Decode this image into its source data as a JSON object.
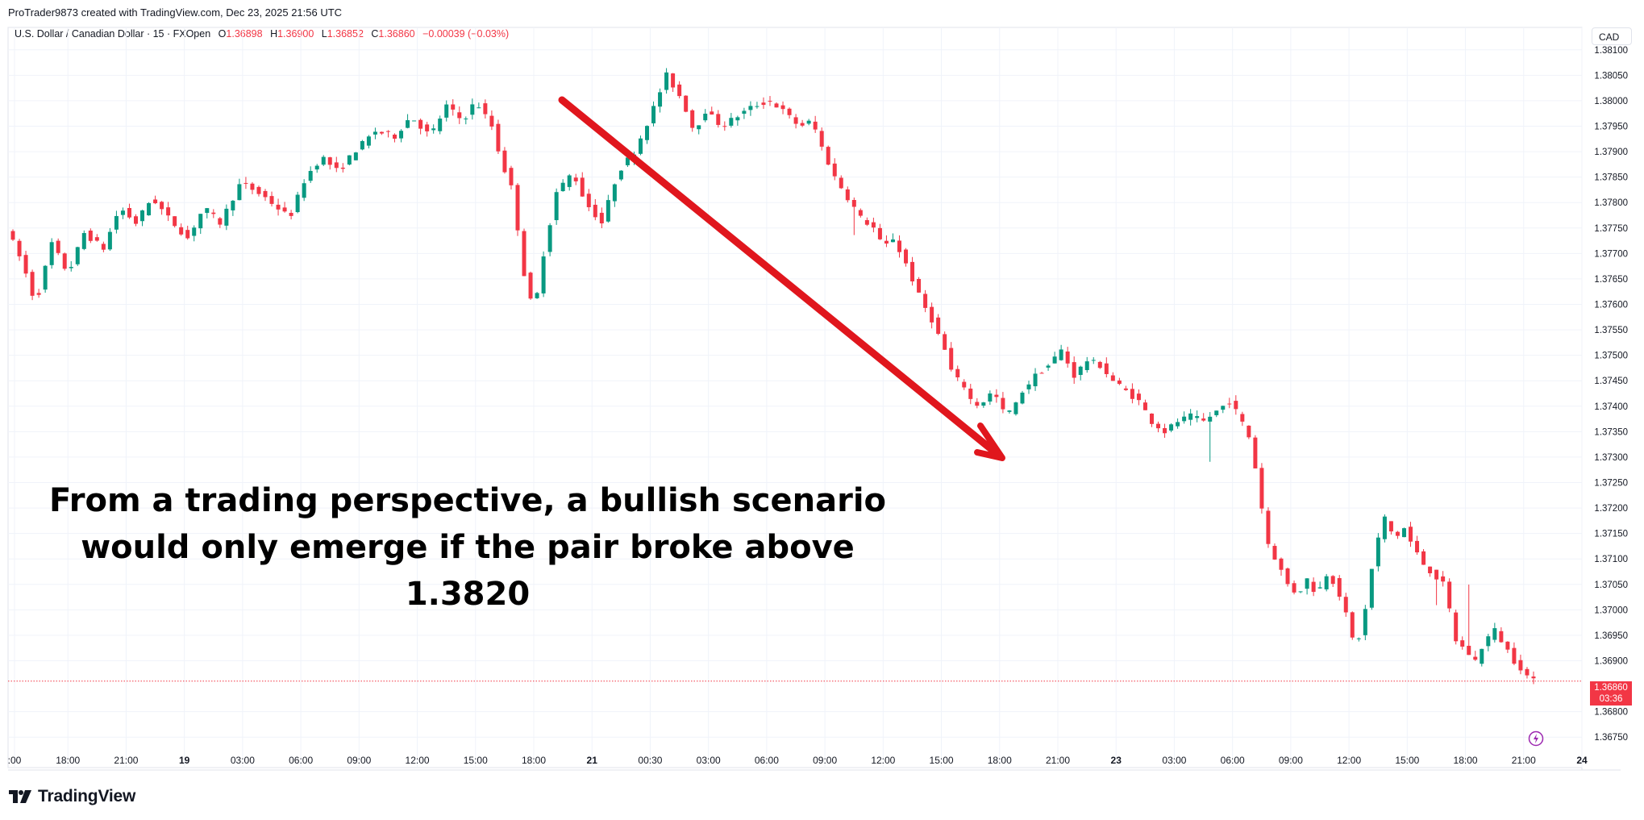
{
  "header": {
    "credit": "ProTrader9873 created with TradingView.com, Dec 23, 2025 21:56 UTC"
  },
  "legend": {
    "symbol": "U.S. Dollar / Canadian Dollar · 15 · FXOpen",
    "o_label": "O",
    "open": "1.36898",
    "h_label": "H",
    "high": "1.36900",
    "l_label": "L",
    "low": "1.36852",
    "c_label": "C",
    "close": "1.36860",
    "change": "−0.00039 (−0.03%)"
  },
  "currency": "CAD",
  "annotation": {
    "line1": "From a trading perspective, a bullish scenario",
    "line2": "would only emerge if the pair broke above 1.3820"
  },
  "price_tag": {
    "price": "1.36860",
    "countdown": "03:36"
  },
  "brand": {
    "name": "TradingView"
  },
  "colors": {
    "up": "#089981",
    "down": "#f23645",
    "arrow": "#e0161d",
    "grid": "#f0f3fa"
  },
  "chart_data": {
    "type": "candlestick",
    "ylabel": "",
    "xlabel": "",
    "ylim": [
      1.36725,
      1.38125
    ],
    "y_ticks": [
      "1.38100",
      "1.38050",
      "1.38000",
      "1.37950",
      "1.37900",
      "1.37850",
      "1.37800",
      "1.37750",
      "1.37700",
      "1.37650",
      "1.37600",
      "1.37550",
      "1.37500",
      "1.37450",
      "1.37400",
      "1.37350",
      "1.37300",
      "1.37250",
      "1.37200",
      "1.37150",
      "1.37100",
      "1.37050",
      "1.37000",
      "1.36950",
      "1.36900",
      "1.36800",
      "1.36750"
    ],
    "x_ticks": [
      ":00",
      "18:00",
      "21:00",
      "19",
      "03:00",
      "06:00",
      "09:00",
      "12:00",
      "15:00",
      "18:00",
      "21",
      "00:30",
      "03:00",
      "06:00",
      "09:00",
      "12:00",
      "15:00",
      "18:00",
      "21:00",
      "23",
      "03:00",
      "06:00",
      "09:00",
      "12:00",
      "15:00",
      "18:00",
      "21:00",
      "24"
    ],
    "last_price": 1.3686,
    "trend_arrow": {
      "from": {
        "x": "Dec 21 ~00:00",
        "y": 1.3806
      },
      "to": {
        "x": "Dec 22 ~18:00",
        "y": 1.3731
      }
    },
    "path": [
      [
        0,
        1.3775
      ],
      [
        10,
        1.3768
      ],
      [
        18,
        1.376
      ],
      [
        28,
        1.3772
      ],
      [
        38,
        1.3766
      ],
      [
        48,
        1.3774
      ],
      [
        60,
        1.3771
      ],
      [
        70,
        1.3779
      ],
      [
        80,
        1.3776
      ],
      [
        90,
        1.3781
      ],
      [
        100,
        1.3777
      ],
      [
        112,
        1.3773
      ],
      [
        122,
        1.3779
      ],
      [
        132,
        1.3776
      ],
      [
        145,
        1.3784
      ],
      [
        160,
        1.3781
      ],
      [
        175,
        1.3777
      ],
      [
        185,
        1.3785
      ],
      [
        195,
        1.3789
      ],
      [
        205,
        1.3786
      ],
      [
        215,
        1.379
      ],
      [
        228,
        1.3794
      ],
      [
        240,
        1.3793
      ],
      [
        250,
        1.3797
      ],
      [
        262,
        1.3793
      ],
      [
        272,
        1.3799
      ],
      [
        282,
        1.3796
      ],
      [
        290,
        1.38
      ],
      [
        300,
        1.3795
      ],
      [
        306,
        1.3788
      ],
      [
        312,
        1.3783
      ],
      [
        316,
        1.3775
      ],
      [
        320,
        1.3766
      ],
      [
        326,
        1.3758
      ],
      [
        332,
        1.377
      ],
      [
        340,
        1.3782
      ],
      [
        350,
        1.3786
      ],
      [
        358,
        1.378
      ],
      [
        368,
        1.3776
      ],
      [
        378,
        1.3786
      ],
      [
        388,
        1.379
      ],
      [
        398,
        1.3797
      ],
      [
        408,
        1.3805
      ],
      [
        418,
        1.38
      ],
      [
        425,
        1.3794
      ],
      [
        432,
        1.3798
      ],
      [
        442,
        1.3795
      ],
      [
        452,
        1.3797
      ],
      [
        462,
        1.3799
      ],
      [
        472,
        1.38
      ],
      [
        480,
        1.3798
      ],
      [
        490,
        1.3795
      ],
      [
        498,
        1.3796
      ],
      [
        505,
        1.379
      ],
      [
        512,
        1.3785
      ],
      [
        520,
        1.3781
      ],
      [
        528,
        1.3777
      ],
      [
        536,
        1.3775
      ],
      [
        542,
        1.3771
      ],
      [
        548,
        1.3773
      ],
      [
        556,
        1.3768
      ],
      [
        565,
        1.3761
      ],
      [
        572,
        1.3757
      ],
      [
        580,
        1.3751
      ],
      [
        585,
        1.3746
      ],
      [
        592,
        1.3744
      ],
      [
        598,
        1.374
      ],
      [
        604,
        1.3741
      ],
      [
        610,
        1.3743
      ],
      [
        616,
        1.3739
      ],
      [
        622,
        1.3739
      ],
      [
        628,
        1.3743
      ],
      [
        636,
        1.3746
      ],
      [
        644,
        1.3748
      ],
      [
        652,
        1.3751
      ],
      [
        660,
        1.3746
      ],
      [
        668,
        1.3749
      ],
      [
        676,
        1.3748
      ],
      [
        684,
        1.3745
      ],
      [
        692,
        1.3743
      ],
      [
        700,
        1.3741
      ],
      [
        708,
        1.3737
      ],
      [
        716,
        1.3735
      ],
      [
        724,
        1.3737
      ],
      [
        732,
        1.3738
      ],
      [
        740,
        1.3737
      ],
      [
        748,
        1.3739
      ],
      [
        756,
        1.3741
      ],
      [
        762,
        1.3738
      ],
      [
        768,
        1.3734
      ],
      [
        772,
        1.3728
      ],
      [
        776,
        1.372
      ],
      [
        780,
        1.3713
      ],
      [
        786,
        1.3709
      ],
      [
        792,
        1.3705
      ],
      [
        798,
        1.3703
      ],
      [
        804,
        1.3706
      ],
      [
        810,
        1.3703
      ],
      [
        816,
        1.3707
      ],
      [
        822,
        1.3705
      ],
      [
        828,
        1.3699
      ],
      [
        834,
        1.3692
      ],
      [
        840,
        1.37
      ],
      [
        846,
        1.3712
      ],
      [
        852,
        1.3718
      ],
      [
        858,
        1.3714
      ],
      [
        864,
        1.3716
      ],
      [
        870,
        1.3712
      ],
      [
        876,
        1.3709
      ],
      [
        882,
        1.3707
      ],
      [
        888,
        1.3705
      ],
      [
        892,
        1.37
      ],
      [
        896,
        1.3694
      ],
      [
        902,
        1.3692
      ],
      [
        908,
        1.369
      ],
      [
        914,
        1.3694
      ],
      [
        920,
        1.3696
      ],
      [
        926,
        1.3693
      ],
      [
        932,
        1.369
      ],
      [
        938,
        1.3688
      ],
      [
        942,
        1.3686
      ]
    ]
  }
}
